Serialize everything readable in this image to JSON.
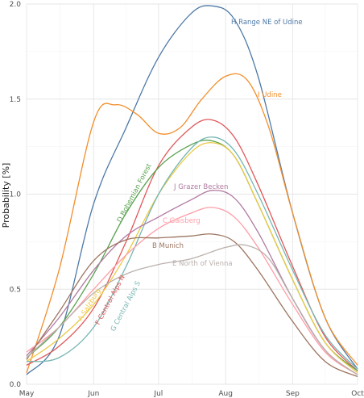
{
  "chart_data": {
    "type": "line",
    "ylabel": "Probability [%]",
    "xlabel": "",
    "ylim": [
      0,
      2.0
    ],
    "xlim": [
      "May 1",
      "Oct 1"
    ],
    "grid": true,
    "legend": "none",
    "x_ticks": [
      "May",
      "Jun",
      "Jul",
      "Aug",
      "Sep",
      "Oct"
    ],
    "y_ticks": [
      "0.0",
      "0.5",
      "1.0",
      "1.5",
      "2.0"
    ],
    "y_tick_values": [
      0,
      0.5,
      1.0,
      1.5,
      2.0
    ],
    "series": [
      {
        "name": "H Range NE of Udine",
        "color": "#4e79a7",
        "x": [
          "May 1",
          "May 16",
          "Jun 1",
          "Jun 16",
          "Jul 1",
          "Jul 16",
          "Jul 26",
          "Aug 5",
          "Aug 16",
          "Sep 1",
          "Sep 16",
          "Oct 1"
        ],
        "y": [
          0.05,
          0.25,
          0.95,
          1.35,
          1.72,
          1.95,
          1.99,
          1.92,
          1.62,
          0.9,
          0.35,
          0.08
        ]
      },
      {
        "name": "I Udine",
        "color": "#f28e2b",
        "x": [
          "May 1",
          "May 16",
          "Jun 1",
          "Jun 11",
          "Jun 21",
          "Jul 1",
          "Jul 11",
          "Jul 21",
          "Aug 1",
          "Aug 11",
          "Aug 21",
          "Sep 1",
          "Sep 16",
          "Oct 1"
        ],
        "y": [
          0.06,
          0.6,
          1.38,
          1.47,
          1.42,
          1.32,
          1.35,
          1.5,
          1.62,
          1.6,
          1.35,
          0.9,
          0.35,
          0.1
        ]
      },
      {
        "name": "F Central Alps N",
        "color": "#e15759",
        "x": [
          "May 1",
          "May 16",
          "Jun 1",
          "Jun 16",
          "Jul 1",
          "Jul 16",
          "Jul 26",
          "Aug 5",
          "Aug 16",
          "Sep 1",
          "Sep 16",
          "Oct 1"
        ],
        "y": [
          0.1,
          0.2,
          0.4,
          0.75,
          1.15,
          1.35,
          1.39,
          1.3,
          1.05,
          0.62,
          0.25,
          0.07
        ]
      },
      {
        "name": "D Bohemian Forest",
        "color": "#59a14f",
        "x": [
          "May 1",
          "May 16",
          "Jun 1",
          "Jun 16",
          "Jul 1",
          "Jul 16",
          "Jul 26",
          "Aug 5",
          "Aug 16",
          "Sep 1",
          "Sep 16",
          "Oct 1"
        ],
        "y": [
          0.14,
          0.3,
          0.58,
          0.9,
          1.14,
          1.26,
          1.28,
          1.2,
          0.95,
          0.55,
          0.22,
          0.07
        ]
      },
      {
        "name": "A Salzburg",
        "color": "#edc948",
        "x": [
          "May 1",
          "May 16",
          "Jun 1",
          "Jun 16",
          "Jul 1",
          "Jul 16",
          "Jul 26",
          "Aug 5",
          "Aug 16",
          "Sep 1",
          "Sep 16",
          "Oct 1"
        ],
        "y": [
          0.12,
          0.24,
          0.42,
          0.68,
          1.0,
          1.22,
          1.27,
          1.2,
          0.95,
          0.55,
          0.22,
          0.06
        ]
      },
      {
        "name": "G Central Alps S",
        "color": "#76b7b2",
        "x": [
          "May 1",
          "May 16",
          "Jun 1",
          "Jun 16",
          "Jul 1",
          "Jul 16",
          "Jul 26",
          "Aug 5",
          "Aug 16",
          "Sep 1",
          "Sep 16",
          "Oct 1"
        ],
        "y": [
          0.12,
          0.14,
          0.3,
          0.62,
          1.0,
          1.24,
          1.3,
          1.23,
          1.0,
          0.6,
          0.26,
          0.08
        ]
      },
      {
        "name": "J Grazer Becken",
        "color": "#b07aa1",
        "x": [
          "May 1",
          "May 16",
          "Jun 1",
          "Jun 16",
          "Jul 1",
          "Jul 16",
          "Jul 26",
          "Aug 5",
          "Aug 16",
          "Sep 1",
          "Sep 16",
          "Oct 1"
        ],
        "y": [
          0.15,
          0.35,
          0.6,
          0.78,
          0.88,
          0.97,
          1.02,
          0.98,
          0.8,
          0.45,
          0.18,
          0.05
        ]
      },
      {
        "name": "C Gaisberg",
        "color": "#ff9da7",
        "x": [
          "May 1",
          "May 16",
          "Jun 1",
          "Jun 16",
          "Jul 1",
          "Jul 16",
          "Jul 26",
          "Aug 5",
          "Aug 16",
          "Sep 1",
          "Sep 16",
          "Oct 1"
        ],
        "y": [
          0.17,
          0.3,
          0.5,
          0.68,
          0.82,
          0.9,
          0.93,
          0.88,
          0.72,
          0.42,
          0.17,
          0.05
        ]
      },
      {
        "name": "B Munich",
        "color": "#9c755f",
        "x": [
          "May 1",
          "May 16",
          "Jun 1",
          "Jun 16",
          "Jul 1",
          "Jul 16",
          "Jul 26",
          "Aug 5",
          "Aug 16",
          "Sep 1",
          "Sep 16",
          "Oct 1"
        ],
        "y": [
          0.13,
          0.38,
          0.65,
          0.76,
          0.77,
          0.78,
          0.79,
          0.75,
          0.6,
          0.33,
          0.12,
          0.04
        ]
      },
      {
        "name": "E North of Vienna",
        "color": "#bab0ac",
        "x": [
          "May 1",
          "May 16",
          "Jun 1",
          "Jun 16",
          "Jul 1",
          "Jul 16",
          "Aug 1",
          "Aug 11",
          "Aug 21",
          "Sep 1",
          "Sep 16",
          "Oct 1"
        ],
        "y": [
          0.14,
          0.3,
          0.48,
          0.58,
          0.63,
          0.66,
          0.72,
          0.73,
          0.66,
          0.45,
          0.18,
          0.05
        ]
      }
    ]
  }
}
